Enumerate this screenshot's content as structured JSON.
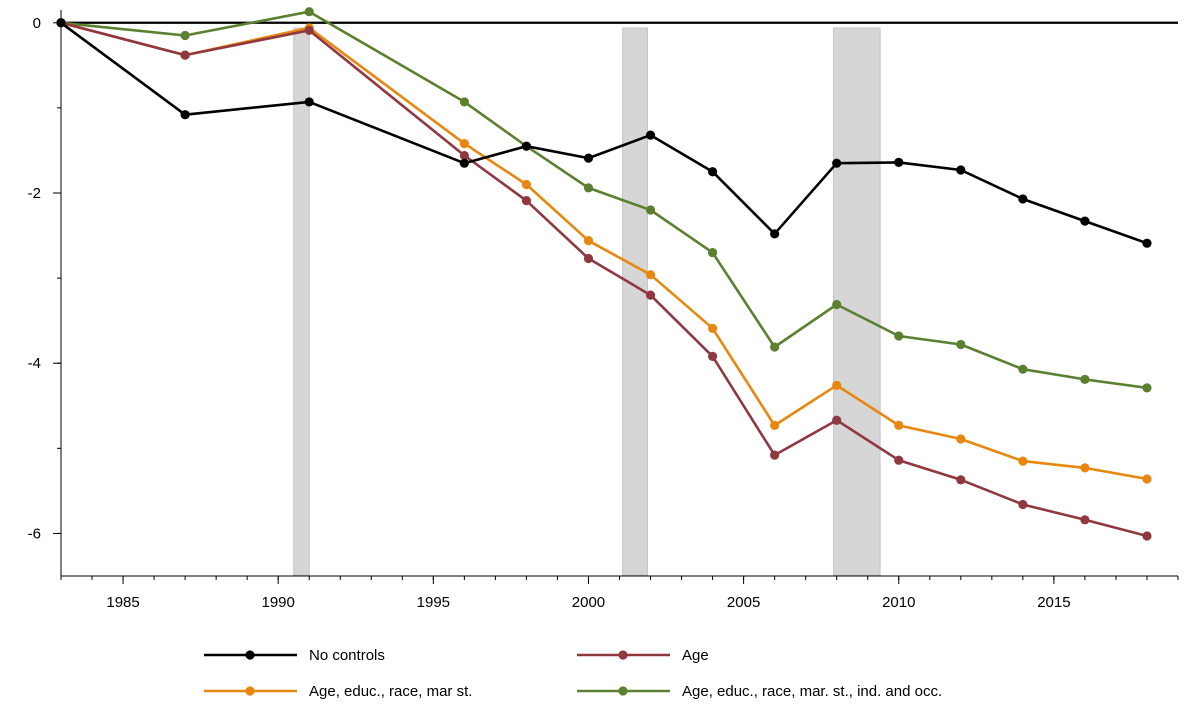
{
  "chart_data": {
    "type": "line",
    "title": "",
    "xlabel": "",
    "ylabel": "",
    "xlim": [
      1983,
      2019
    ],
    "ylim": [
      -6.5,
      0.15
    ],
    "xticks": [
      1985,
      1990,
      1995,
      2000,
      2005,
      2010,
      2015
    ],
    "yticks": [
      0,
      -2,
      -4,
      -6
    ],
    "xtick_labels": [
      "1985",
      "1990",
      "1995",
      "2000",
      "2005",
      "2010",
      "2015"
    ],
    "ytick_labels": [
      "0",
      "-2",
      "-4",
      "-6"
    ],
    "reference_line_y": 0,
    "grid": false,
    "legend_position": "bottom",
    "recession_shading": [
      {
        "start": 1990.5,
        "end": 1991.0
      },
      {
        "start": 2001.1,
        "end": 2001.9
      },
      {
        "start": 2007.9,
        "end": 2009.4
      }
    ],
    "x": [
      1983,
      1987,
      1991,
      1996,
      1998,
      2000,
      2002,
      2004,
      2006,
      2008,
      2010,
      2012,
      2014,
      2016,
      2018
    ],
    "series": [
      {
        "name": "No controls",
        "color": "#000000",
        "values": [
          0,
          -1.08,
          -0.93,
          -1.65,
          -1.45,
          -1.59,
          -1.32,
          -1.75,
          -2.48,
          -1.65,
          -1.64,
          -1.73,
          -2.07,
          -2.33,
          -2.59
        ]
      },
      {
        "name": "Age",
        "color": "#903840",
        "values": [
          0,
          -0.38,
          -0.09,
          -1.56,
          -2.09,
          -2.77,
          -3.2,
          -3.92,
          -5.08,
          -4.67,
          -5.14,
          -5.37,
          -5.66,
          -5.84,
          -6.03
        ]
      },
      {
        "name": "Age, educ., race, mar st.",
        "color": "#e8870f",
        "values": [
          0,
          -0.38,
          -0.06,
          -1.42,
          -1.9,
          -2.56,
          -2.96,
          -3.59,
          -4.73,
          -4.26,
          -4.73,
          -4.89,
          -5.15,
          -5.23,
          -5.36
        ]
      },
      {
        "name": "Age, educ., race, mar. st., ind. and occ.",
        "color": "#5a8030",
        "values": [
          0,
          -0.15,
          0.13,
          -0.93,
          -1.45,
          -1.94,
          -2.2,
          -2.7,
          -3.81,
          -3.31,
          -3.68,
          -3.78,
          -4.07,
          -4.19,
          -4.29
        ]
      }
    ]
  }
}
